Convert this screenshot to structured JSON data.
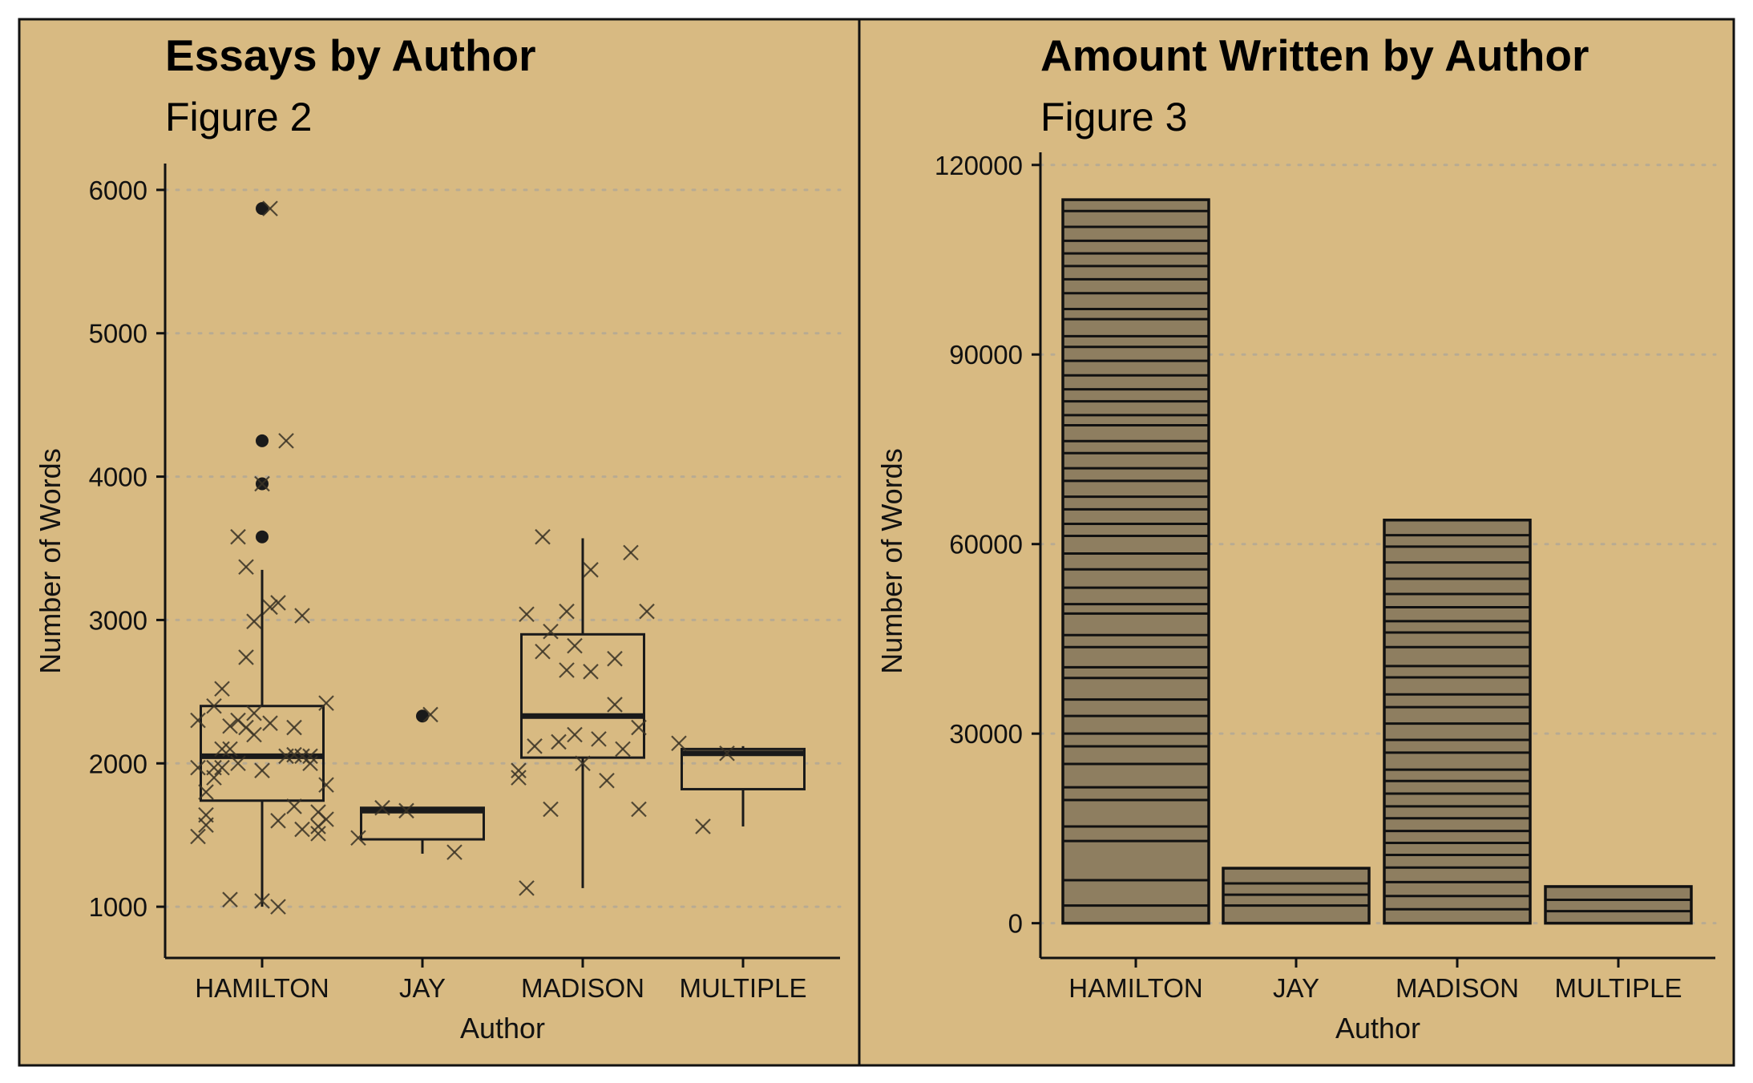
{
  "chart_data": [
    {
      "type": "box",
      "title": "Essays by Author",
      "subtitle": "Figure 2",
      "xlabel": "Author",
      "ylabel": "Number of Words",
      "categories": [
        "HAMILTON",
        "JAY",
        "MADISON",
        "MULTIPLE"
      ],
      "ylim": [
        900,
        6100
      ],
      "yticks": [
        1000,
        2000,
        3000,
        4000,
        5000,
        6000
      ],
      "grid": "horizontal dotted",
      "boxes": [
        {
          "category": "HAMILTON",
          "q1": 1740,
          "median": 2050,
          "q3": 2400,
          "whisker_low": 1000,
          "whisker_high": 3350,
          "outliers": [
            3580,
            3950,
            4250,
            5870
          ]
        },
        {
          "category": "JAY",
          "q1": 1470,
          "median": 1670,
          "q3": 1690,
          "whisker_low": 1370,
          "whisker_high": 1690,
          "outliers": [
            2330
          ]
        },
        {
          "category": "MADISON",
          "q1": 2040,
          "median": 2330,
          "q3": 2900,
          "whisker_low": 1130,
          "whisker_high": 3570,
          "outliers": []
        },
        {
          "category": "MULTIPLE",
          "q1": 1820,
          "median": 2070,
          "q3": 2100,
          "whisker_low": 1560,
          "whisker_high": 2120,
          "outliers": []
        }
      ],
      "jitter_points": [
        {
          "category": "HAMILTON",
          "values": [
            1490,
            1970,
            2740,
            3090,
            1700,
            1660,
            1640,
            2260,
            2200,
            3120,
            3030,
            2420,
            1970,
            2000,
            3950,
            4250,
            2050,
            2300,
            2520,
            2250,
            2280,
            2060,
            1510,
            1800,
            2100,
            2990,
            1000,
            1540,
            1850,
            2400,
            2300,
            1040,
            2050,
            2000,
            1970,
            2100,
            3370,
            5870,
            2250,
            1560,
            1570,
            1050,
            2350,
            1600,
            2050,
            1610,
            1900,
            3580,
            1950
          ]
        },
        {
          "category": "JAY",
          "values": [
            1480,
            1690,
            1670,
            2340,
            1380
          ]
        },
        {
          "category": "MADISON",
          "values": [
            1900,
            2780,
            2650,
            2640,
            2730,
            2250,
            1130,
            1680,
            2200,
            2170,
            2100,
            3060,
            2120,
            2150,
            2000,
            1880,
            3470,
            1950,
            3580,
            3060,
            3350,
            2410,
            1680,
            3040,
            2920,
            2820
          ]
        },
        {
          "category": "MULTIPLE",
          "values": [
            2140,
            1560,
            2070
          ]
        }
      ]
    },
    {
      "type": "bar",
      "title": "Amount Written by Author",
      "subtitle": "Figure 3",
      "xlabel": "Author",
      "ylabel": "Number of Words",
      "categories": [
        "HAMILTON",
        "JAY",
        "MADISON",
        "MULTIPLE"
      ],
      "values": [
        114500,
        8700,
        63800,
        5800
      ],
      "ylim": [
        -5500,
        122000
      ],
      "yticks": [
        0,
        30000,
        60000,
        90000,
        120000
      ],
      "ytick_labels": [
        "0",
        "30000",
        "60000",
        "90000",
        "120000"
      ],
      "grid": "horizontal dotted",
      "stacked_segments": [
        [
          2800,
          6800,
          13000,
          15300,
          19500,
          21500,
          25200,
          28000,
          30000,
          32800,
          35400,
          38800,
          40500,
          43700,
          45600,
          49000,
          50500,
          53100,
          56000,
          58500,
          61300,
          63200,
          65500,
          67500,
          70000,
          72000,
          74400,
          76300,
          78800,
          80400,
          82600,
          84500,
          86700,
          89000,
          91200,
          92900,
          95600,
          97200,
          99700,
          101900,
          104000,
          106000,
          108000,
          110200,
          112700
        ],
        [
          2800,
          4500,
          6300
        ],
        [
          2200,
          4300,
          6500,
          8800,
          10800,
          12700,
          14600,
          16600,
          18500,
          20500,
          22500,
          24300,
          27000,
          29000,
          31600,
          34200,
          36200,
          38900,
          40700,
          43700,
          46000,
          47800,
          50000,
          52100,
          54500,
          57100,
          59600,
          61400
        ],
        [
          1900,
          3700
        ]
      ]
    }
  ],
  "colors": {
    "panel_bg": "#d8ba82",
    "bar_fill": "#8e7e60",
    "ink": "#1a1a1a",
    "grid": "#b8ab92"
  }
}
